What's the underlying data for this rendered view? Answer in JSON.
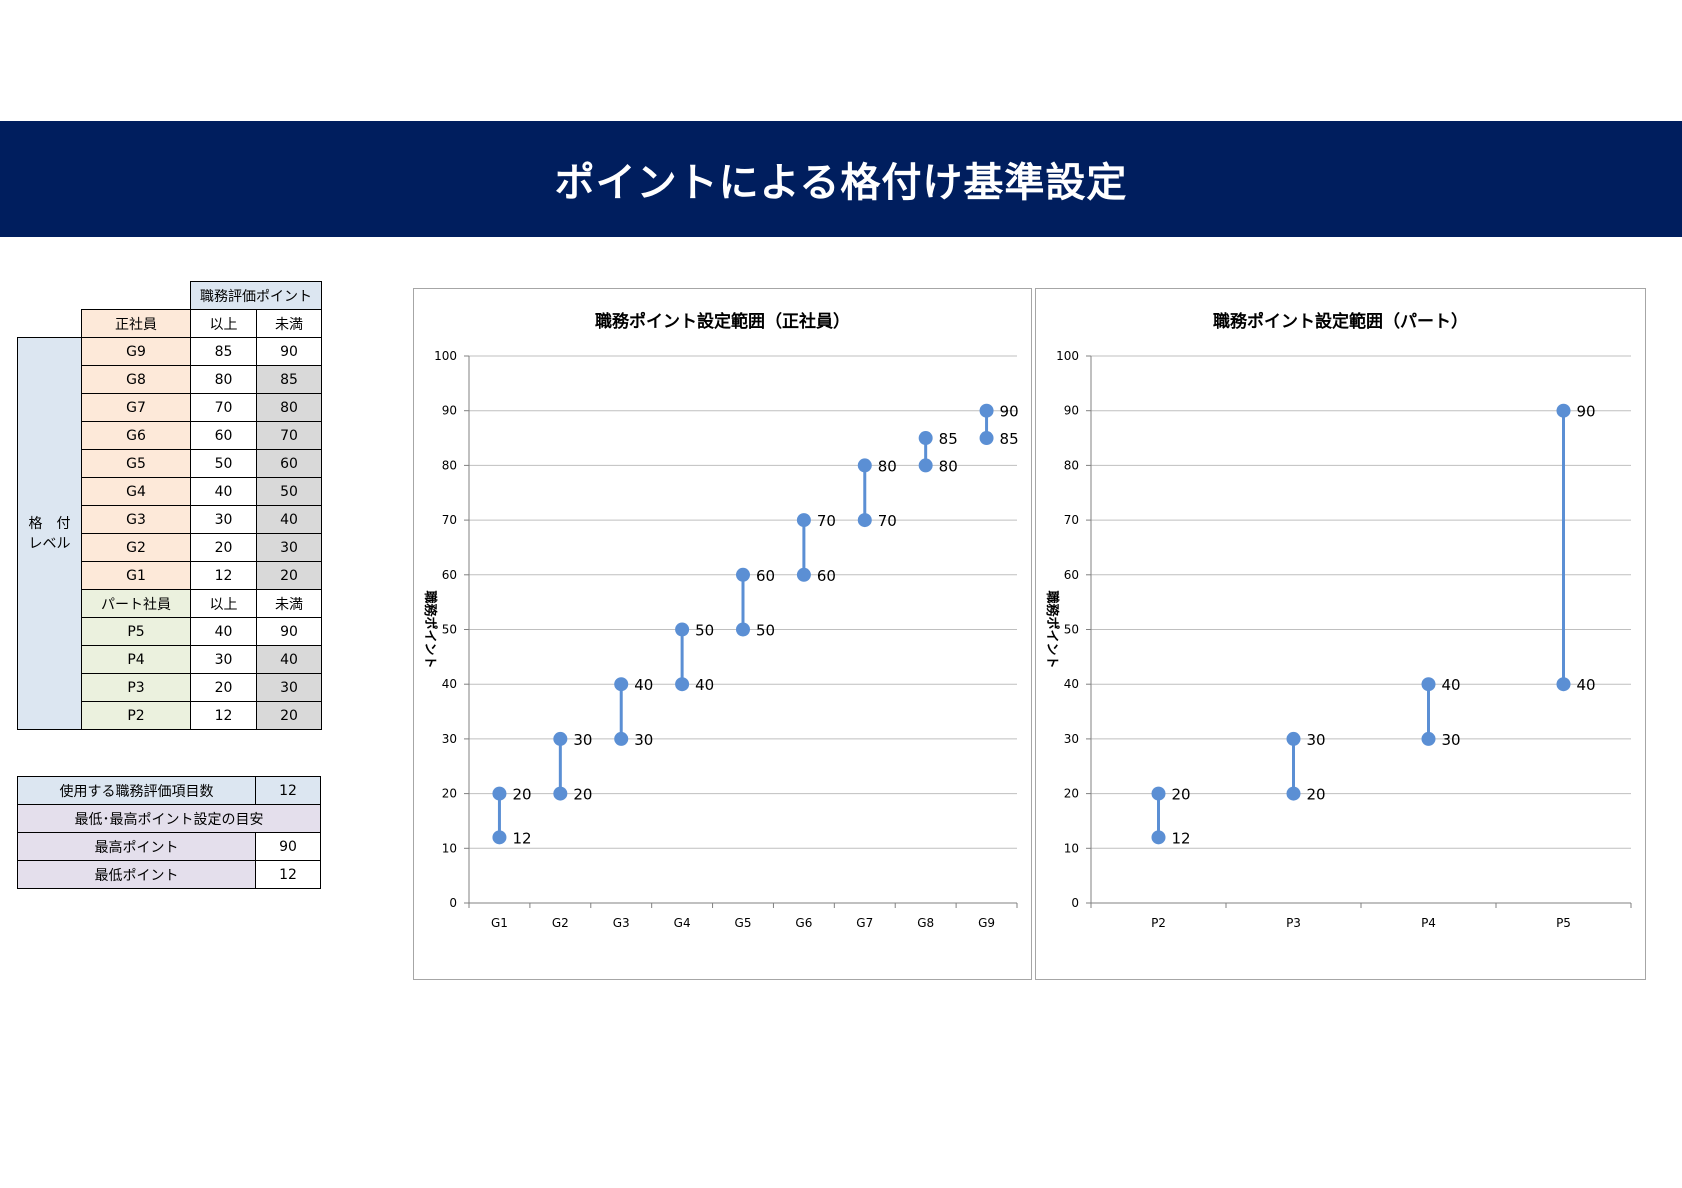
{
  "title": "ポイントによる格付け基準設定",
  "grade_table": {
    "header_points": "職務評価ポイント",
    "seishain_label": "正社員",
    "col_min": "以上",
    "col_max": "未満",
    "side_label_line1": "格　付",
    "side_label_line2": "レベル",
    "seishain_rows": [
      {
        "grade": "G9",
        "min": "85",
        "max": "90"
      },
      {
        "grade": "G8",
        "min": "80",
        "max": "85"
      },
      {
        "grade": "G7",
        "min": "70",
        "max": "80"
      },
      {
        "grade": "G6",
        "min": "60",
        "max": "70"
      },
      {
        "grade": "G5",
        "min": "50",
        "max": "60"
      },
      {
        "grade": "G4",
        "min": "40",
        "max": "50"
      },
      {
        "grade": "G3",
        "min": "30",
        "max": "40"
      },
      {
        "grade": "G2",
        "min": "20",
        "max": "30"
      },
      {
        "grade": "G1",
        "min": "12",
        "max": "20"
      }
    ],
    "part_label": "パート社員",
    "part_rows": [
      {
        "grade": "P5",
        "min": "40",
        "max": "90"
      },
      {
        "grade": "P4",
        "min": "30",
        "max": "40"
      },
      {
        "grade": "P3",
        "min": "20",
        "max": "30"
      },
      {
        "grade": "P2",
        "min": "12",
        "max": "20"
      }
    ]
  },
  "summary": {
    "items_label": "使用する職務評価項目数",
    "items_value": "12",
    "guide_label": "最低･最高ポイント設定の目安",
    "max_label": "最高ポイント",
    "max_value": "90",
    "min_label": "最低ポイント",
    "min_value": "12"
  },
  "colors": {
    "banner": "#001e5e",
    "series": "#5b8fd4",
    "grid": "#bfbfbf"
  },
  "chart_data": [
    {
      "type": "line",
      "title": "職務ポイント設定範囲（正社員）",
      "ylabel": "職務ポイント",
      "ylim": [
        0,
        100
      ],
      "yticks": [
        "0",
        "10",
        "20",
        "30",
        "40",
        "50",
        "60",
        "70",
        "80",
        "90",
        "100"
      ],
      "grid": true,
      "categories": [
        "G1",
        "G2",
        "G3",
        "G4",
        "G5",
        "G6",
        "G7",
        "G8",
        "G9"
      ],
      "series": [
        {
          "values": [
            12,
            20,
            30,
            40,
            50,
            60,
            70,
            80,
            85
          ]
        },
        {
          "values": [
            20,
            30,
            40,
            50,
            60,
            70,
            80,
            85,
            90
          ]
        }
      ]
    },
    {
      "type": "line",
      "title": "職務ポイント設定範囲（パート）",
      "ylabel": "職務ポイント",
      "ylim": [
        0,
        100
      ],
      "yticks": [
        "0",
        "10",
        "20",
        "30",
        "40",
        "50",
        "60",
        "70",
        "80",
        "90",
        "100"
      ],
      "grid": true,
      "categories": [
        "P2",
        "P3",
        "P4",
        "P5"
      ],
      "series": [
        {
          "values": [
            12,
            20,
            30,
            40
          ]
        },
        {
          "values": [
            20,
            30,
            40,
            90
          ]
        }
      ]
    }
  ]
}
